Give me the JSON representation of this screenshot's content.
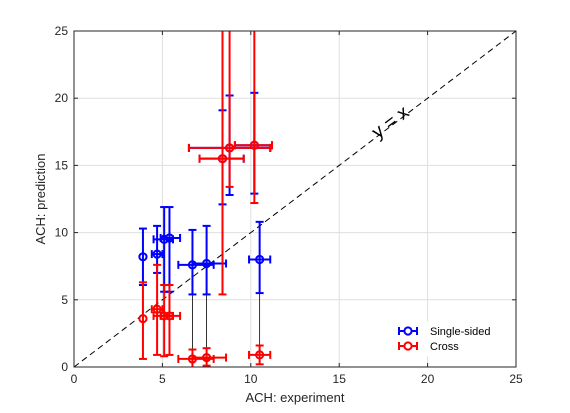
{
  "chart_data": {
    "type": "scatter",
    "title": "",
    "xlabel": "ACH: experiment",
    "ylabel": "ACH: prediction",
    "xlim": [
      0,
      25
    ],
    "ylim": [
      0,
      25
    ],
    "xticks": [
      "0",
      "5",
      "10",
      "15",
      "20",
      "25"
    ],
    "yticks": [
      "0",
      "5",
      "10",
      "15",
      "20",
      "25"
    ],
    "grid": true,
    "legend_position": "bottom-right",
    "reference_line": {
      "label": "y = x",
      "style": "dashed",
      "color": "#000000"
    },
    "connectors_color": "#000000",
    "series": [
      {
        "name": "Single-sided",
        "color": "#0000ff",
        "points": [
          {
            "x": 3.9,
            "y": 8.2,
            "xerr": [
              0,
              0
            ],
            "yerr": [
              6.1,
              10.3
            ]
          },
          {
            "x": 4.7,
            "y": 8.4,
            "xerr": [
              4.4,
              5.0
            ],
            "yerr": [
              7.0,
              10.5
            ]
          },
          {
            "x": 5.1,
            "y": 9.5,
            "xerr": [
              4.5,
              5.6
            ],
            "yerr": [
              5.6,
              11.9
            ]
          },
          {
            "x": 5.4,
            "y": 9.6,
            "xerr": [
              4.9,
              6.0
            ],
            "yerr": [
              5.6,
              11.9
            ]
          },
          {
            "x": 6.7,
            "y": 7.6,
            "xerr": [
              5.9,
              7.9
            ],
            "yerr": [
              5.4,
              10.2
            ]
          },
          {
            "x": 7.5,
            "y": 7.7,
            "xerr": [
              6.7,
              8.6
            ],
            "yerr": [
              5.4,
              10.5
            ]
          },
          {
            "x": 10.5,
            "y": 8.0,
            "xerr": [
              9.9,
              11.1
            ],
            "yerr": [
              5.5,
              10.8
            ]
          },
          {
            "x": 8.4,
            "y": 15.5,
            "xerr": [
              7.1,
              9.6
            ],
            "yerr": [
              12.1,
              19.1
            ]
          },
          {
            "x": 8.8,
            "y": 16.3,
            "xerr": [
              6.5,
              11.1
            ],
            "yerr": [
              12.8,
              20.2
            ]
          },
          {
            "x": 10.2,
            "y": 16.5,
            "xerr": [
              9.1,
              11.2
            ],
            "yerr": [
              12.9,
              20.4
            ]
          }
        ]
      },
      {
        "name": "Cross",
        "color": "#ff0000",
        "points": [
          {
            "x": 3.9,
            "y": 3.6,
            "xerr": [
              0,
              0
            ],
            "yerr": [
              0.6,
              6.3
            ]
          },
          {
            "x": 4.7,
            "y": 4.3,
            "xerr": [
              4.4,
              5.0
            ],
            "yerr": [
              0.9,
              7.6
            ]
          },
          {
            "x": 5.1,
            "y": 3.8,
            "xerr": [
              4.5,
              5.6
            ],
            "yerr": [
              0.8,
              6.1
            ]
          },
          {
            "x": 5.4,
            "y": 3.8,
            "xerr": [
              4.9,
              6.0
            ],
            "yerr": [
              0.9,
              6.1
            ]
          },
          {
            "x": 6.7,
            "y": 0.6,
            "xerr": [
              5.9,
              7.9
            ],
            "yerr": [
              0.0,
              1.3
            ]
          },
          {
            "x": 7.5,
            "y": 0.7,
            "xerr": [
              6.7,
              8.6
            ],
            "yerr": [
              0.1,
              1.4
            ]
          },
          {
            "x": 10.5,
            "y": 0.9,
            "xerr": [
              9.9,
              11.1
            ],
            "yerr": [
              0.2,
              1.6
            ]
          },
          {
            "x": 8.4,
            "y": 15.5,
            "xerr": [
              7.1,
              9.6
            ],
            "yerr": [
              5.4,
              25
            ]
          },
          {
            "x": 8.8,
            "y": 16.3,
            "xerr": [
              6.5,
              11.1
            ],
            "yerr": [
              13.4,
              25
            ]
          },
          {
            "x": 10.2,
            "y": 16.5,
            "xerr": [
              9.1,
              11.2
            ],
            "yerr": [
              12.2,
              25
            ]
          }
        ]
      }
    ]
  }
}
